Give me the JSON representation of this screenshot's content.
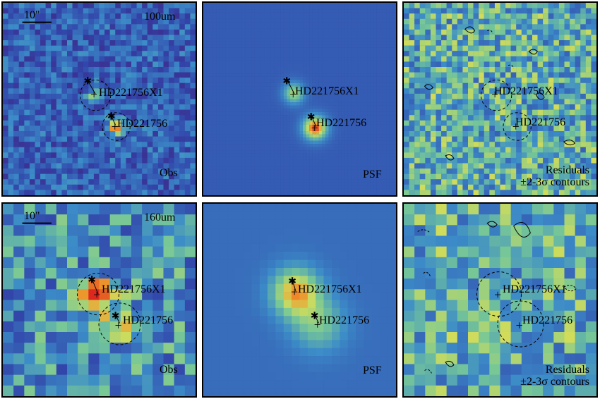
{
  "panels": {
    "p100_obs": {
      "band": "100um",
      "scalebar": "10\"",
      "caption": "Obs",
      "src1": "HD221756X1",
      "src2": "HD221756"
    },
    "p100_psf": {
      "caption": "PSF",
      "src1": "HD221756X1",
      "src2": "HD221756"
    },
    "p100_res": {
      "caption_l1": "Residuals",
      "caption_l2": "±2-3σ contours",
      "src1": "HD221756X1",
      "src2": "HD221756"
    },
    "p160_obs": {
      "band": "160um",
      "scalebar": "10\"",
      "caption": "Obs",
      "src1": "HD221756X1",
      "src2": "HD221756"
    },
    "p160_psf": {
      "caption": "PSF",
      "src1": "HD221756X1",
      "src2": "HD221756"
    },
    "p160_res": {
      "caption_l1": "Residuals",
      "caption_l2": "±2-3σ contours",
      "src1": "HD221756X1",
      "src2": "HD221756"
    }
  },
  "colors": {
    "frame": "#000000",
    "bg": "#2e3f9e",
    "peak": "#e8462a"
  }
}
